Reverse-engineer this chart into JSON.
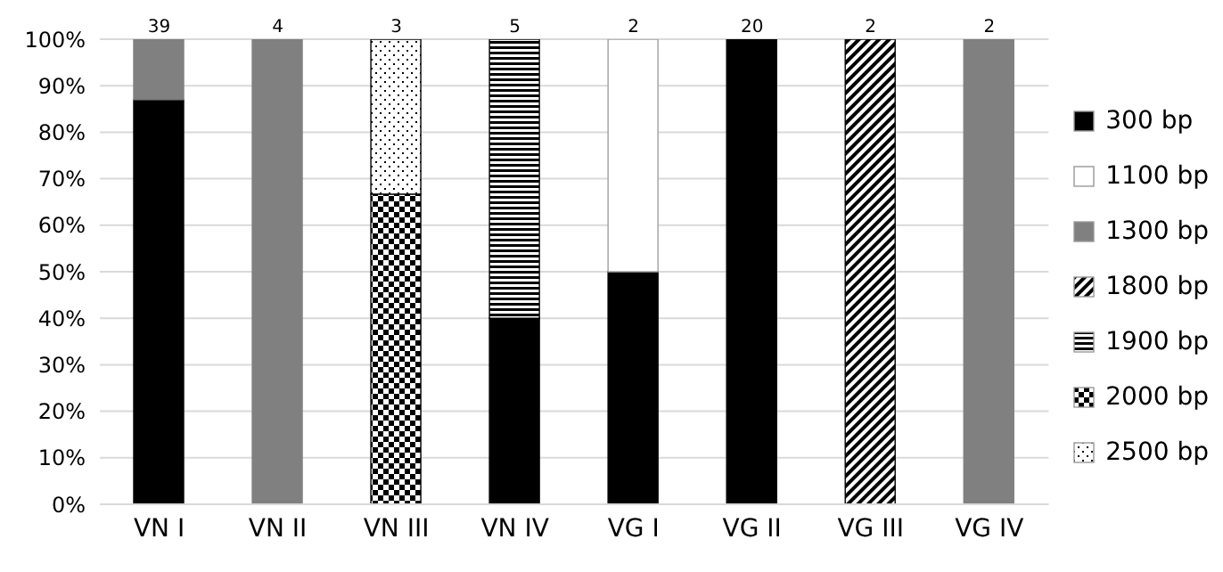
{
  "chart_data": {
    "type": "bar",
    "stacked": true,
    "categories": [
      "VN I",
      "VN II",
      "VN III",
      "VN IV",
      "VG I",
      "VG II",
      "VG III",
      "VG IV"
    ],
    "series": [
      {
        "name": "300 bp",
        "color": "#000000",
        "values": [
          87,
          null,
          null,
          40,
          50,
          100,
          null,
          null
        ]
      },
      {
        "name": "1100 bp",
        "color": "#ffffff",
        "values": [
          null,
          null,
          null,
          null,
          50,
          null,
          null,
          null
        ]
      },
      {
        "name": "1300 bp",
        "color": "#808080",
        "values": [
          13,
          100,
          null,
          null,
          null,
          null,
          null,
          100
        ]
      },
      {
        "name": "1800 bp",
        "color": "#000000",
        "values": [
          null,
          null,
          null,
          null,
          null,
          null,
          100,
          null
        ]
      },
      {
        "name": "1900 bp",
        "color": "#000000",
        "values": [
          null,
          null,
          null,
          60,
          null,
          null,
          null,
          null
        ]
      },
      {
        "name": "2000 bp",
        "color": "#000000",
        "values": [
          null,
          null,
          66.7,
          null,
          null,
          null,
          null,
          null
        ]
      },
      {
        "name": "2500 bp",
        "color": "#000000",
        "values": [
          null,
          null,
          33.3,
          null,
          null,
          null,
          null,
          null
        ]
      }
    ],
    "annotations": [
      {
        "text": "39",
        "x": "VN I",
        "y": 100
      },
      {
        "text": "4",
        "x": "VN II",
        "y": 100
      },
      {
        "text": "3",
        "x": "VN III",
        "y": 100
      },
      {
        "text": "5",
        "x": "VN IV",
        "y": 100
      },
      {
        "text": "2",
        "x": "VG I",
        "y": 100
      },
      {
        "text": "20",
        "x": "VG II",
        "y": 100
      },
      {
        "text": "2",
        "x": "VG III",
        "y": 100
      },
      {
        "text": "2",
        "x": "VG IV",
        "y": 100
      }
    ],
    "ylim": [
      0,
      100
    ],
    "yticks": [
      {
        "value": 0,
        "label": "0%"
      },
      {
        "value": 10,
        "label": "10%"
      },
      {
        "value": 20,
        "label": "20%"
      },
      {
        "value": 30,
        "label": "30%"
      },
      {
        "value": 40,
        "label": "40%"
      },
      {
        "value": 50,
        "label": "50%"
      },
      {
        "value": 60,
        "label": "60%"
      },
      {
        "value": 70,
        "label": "70%"
      },
      {
        "value": 80,
        "label": "80%"
      },
      {
        "value": 90,
        "label": "90%"
      },
      {
        "value": 100,
        "label": "100%"
      }
    ],
    "grid": "y",
    "legend": "right"
  }
}
